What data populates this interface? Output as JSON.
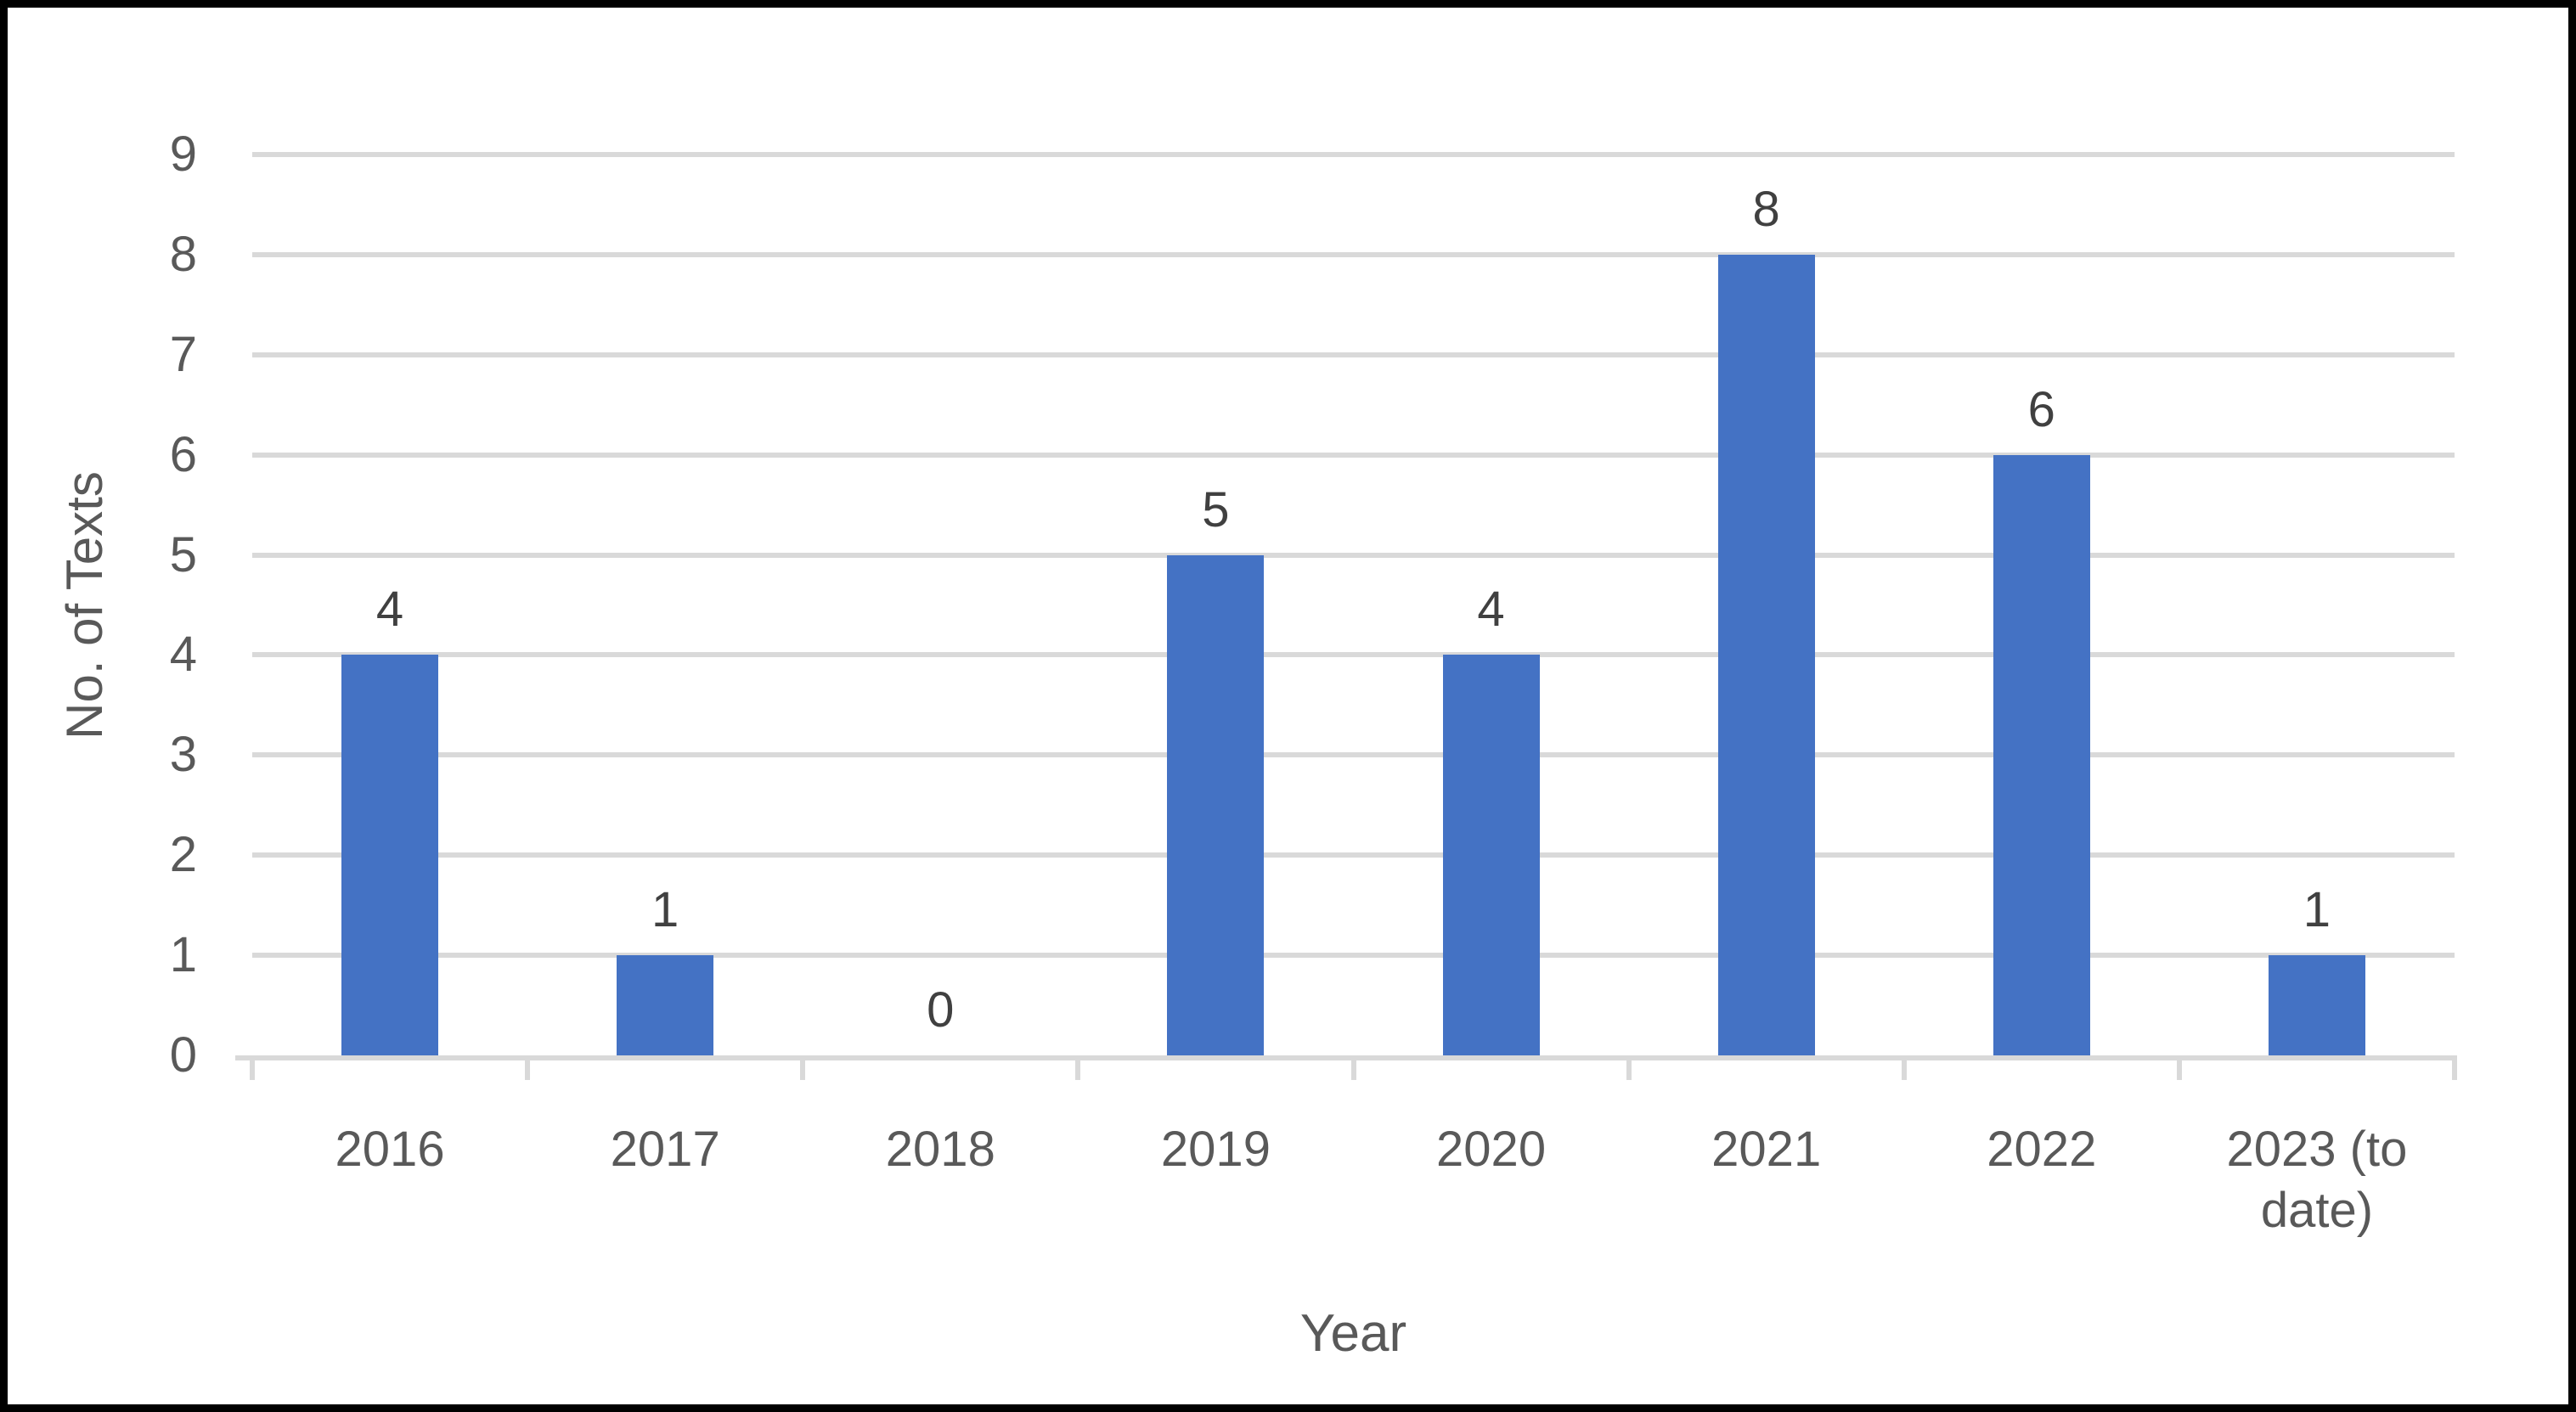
{
  "chart_data": {
    "type": "bar",
    "categories": [
      "2016",
      "2017",
      "2018",
      "2019",
      "2020",
      "2021",
      "2022",
      "2023 (to date)"
    ],
    "values": [
      4,
      1,
      0,
      5,
      4,
      8,
      6,
      1
    ],
    "xlabel": "Year",
    "ylabel": "No. of Texts",
    "yticks": [
      0,
      1,
      2,
      3,
      4,
      5,
      6,
      7,
      8,
      9
    ],
    "ylim": [
      0,
      9
    ],
    "grid": true,
    "legend": false,
    "bar_color": "#4472C4",
    "gridline_color": "#D9D9D9",
    "axis_line_color": "#D9D9D9",
    "tick_label_color": "#595959",
    "axis_title_color": "#595959",
    "data_label_color": "#404040",
    "frame_border_color": "#000000"
  }
}
